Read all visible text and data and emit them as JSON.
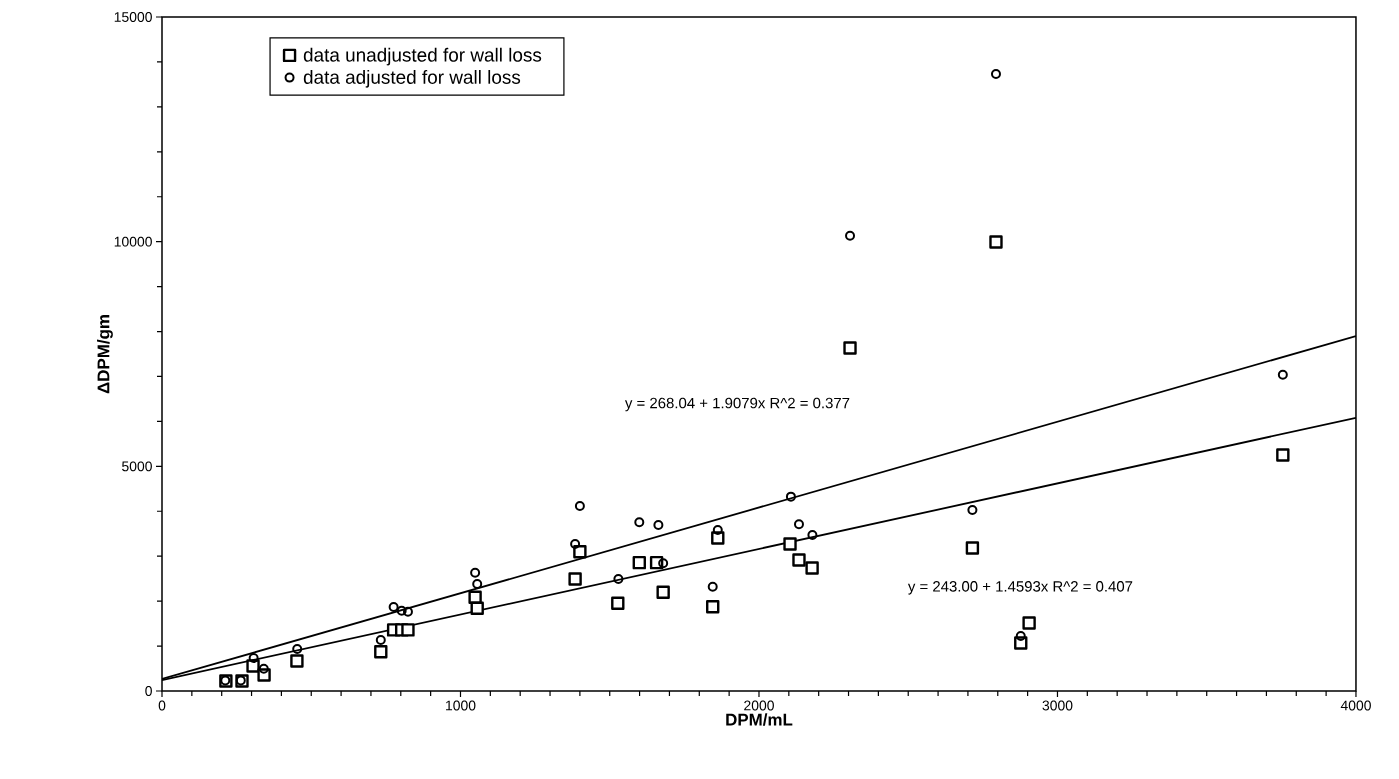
{
  "chart_data": {
    "type": "scatter",
    "xlabel": "DPM/mL",
    "ylabel": "ΔDPM/gm",
    "xlim": [
      0,
      4000
    ],
    "ylim": [
      0,
      15000
    ],
    "xticks": [
      0,
      1000,
      2000,
      3000,
      4000
    ],
    "yticks": [
      0,
      5000,
      10000,
      15000
    ],
    "legend": "top left",
    "grid": false,
    "series": [
      {
        "name": "data unadjusted for wall loss",
        "marker": "square",
        "color": "#000000",
        "x": [
          214,
          268,
          305,
          342,
          452,
          733,
          776,
          803,
          824,
          1049,
          1056,
          1384,
          1400,
          1527,
          1599,
          1657,
          1679,
          1845,
          1862,
          2104,
          2134,
          2178,
          2305,
          2715,
          2794,
          2877,
          2905,
          3755
        ],
        "values": [
          223,
          223,
          556,
          356,
          668,
          875,
          1360,
          1360,
          1360,
          2085,
          1840,
          2493,
          3100,
          1952,
          2856,
          2856,
          2197,
          1876,
          3405,
          3272,
          2916,
          2738,
          7634,
          3183,
          9993,
          1068,
          1513,
          5253
        ]
      },
      {
        "name": "data adjusted for wall loss",
        "marker": "circle",
        "color": "#000000",
        "x": [
          212,
          264,
          307,
          341,
          453,
          733,
          776,
          803,
          824,
          1049,
          1056,
          1384,
          1400,
          1529,
          1599,
          1663,
          1679,
          1845,
          1862,
          2107,
          2134,
          2179,
          2305,
          2715,
          2794,
          2877,
          3755
        ],
        "values": [
          236,
          236,
          734,
          494,
          935,
          1135,
          1870,
          1787,
          1765,
          2633,
          2381,
          3272,
          4118,
          2493,
          3754,
          3695,
          2842,
          2322,
          3583,
          4325,
          3710,
          3472,
          10130,
          4028,
          13730,
          1224,
          7038
        ]
      },
      {
        "type": "line",
        "marker": "none",
        "line_style": "solid",
        "color": "#000000",
        "x": [
          0,
          4000
        ],
        "values": [
          268,
          7900
        ]
      },
      {
        "type": "line",
        "marker": "none",
        "line_style": "solid",
        "color": "#000000",
        "x": [
          0,
          4000
        ],
        "values": [
          243,
          6080
        ]
      }
    ],
    "annotations": [
      "y = 268.04 + 1.9079x   R^2 = 0.377",
      "y = 243.00 + 1.4593x   R^2 = 0.407"
    ]
  }
}
